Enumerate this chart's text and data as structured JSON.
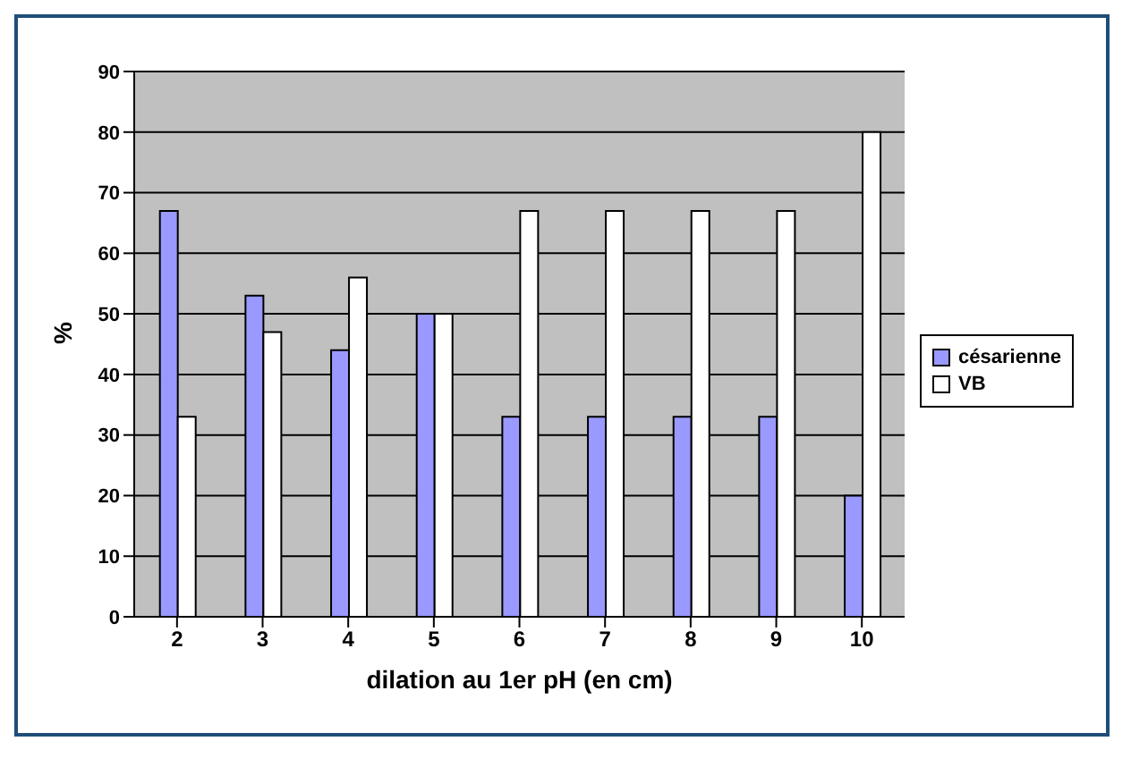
{
  "chart_data": {
    "type": "bar",
    "xlabel": "dilation au 1er pH (en cm)",
    "ylabel": "%",
    "categories": [
      "2",
      "3",
      "4",
      "5",
      "6",
      "7",
      "8",
      "9",
      "10"
    ],
    "series": [
      {
        "name": "césarienne",
        "color": "#9999ff",
        "values": [
          67,
          53,
          44,
          50,
          33,
          33,
          33,
          33,
          20
        ]
      },
      {
        "name": "VB",
        "color": "#ffffff",
        "values": [
          33,
          47,
          56,
          50,
          67,
          67,
          67,
          67,
          80
        ]
      }
    ],
    "ylim": [
      0,
      90
    ],
    "yticks": [
      0,
      10,
      20,
      30,
      40,
      50,
      60,
      70,
      80,
      90
    ],
    "grid": "y",
    "legend": "right"
  }
}
